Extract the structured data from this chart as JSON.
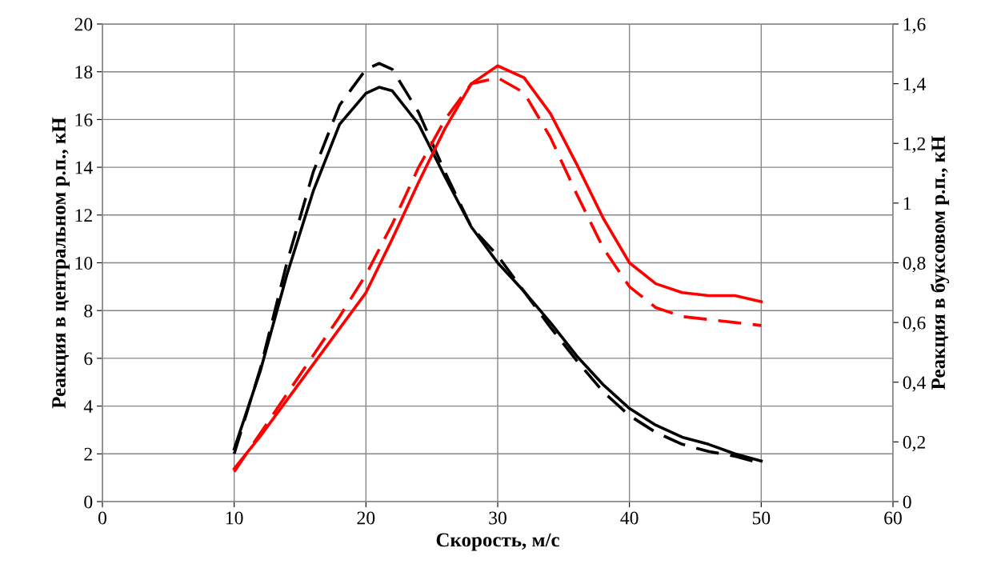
{
  "chart_data": {
    "type": "line",
    "xlabel": "Скорость, м/с",
    "ylabel": "Реакция в центральном р.п., кН",
    "y2label": "Реакция в буксовом р.п., кН",
    "x": [
      10,
      12,
      14,
      16,
      18,
      20,
      21,
      22,
      24,
      26,
      28,
      30,
      32,
      34,
      36,
      38,
      40,
      42,
      44,
      46,
      48,
      50
    ],
    "series": [
      {
        "color": "#000000",
        "line_style": "solid",
        "axis": "y",
        "values": [
          2.2,
          5.5,
          9.5,
          13,
          15.8,
          17.1,
          17.35,
          17.2,
          15.8,
          13.6,
          11.5,
          10.0,
          8.8,
          7.5,
          6.1,
          4.9,
          3.9,
          3.2,
          2.7,
          2.4,
          2.0,
          1.7
        ]
      },
      {
        "color": "#000000",
        "line_style": "dashed",
        "axis": "y",
        "values": [
          2.0,
          5.6,
          10,
          13.8,
          16.6,
          18.1,
          18.35,
          18.1,
          16.3,
          13.8,
          11.5,
          10.3,
          8.8,
          7.3,
          5.9,
          4.6,
          3.6,
          2.9,
          2.4,
          2.1,
          1.9,
          1.6
        ]
      },
      {
        "color": "#ff0000",
        "line_style": "solid",
        "axis": "y2",
        "x": [
          10,
          12,
          14,
          16,
          18,
          20,
          22,
          24,
          26,
          28,
          30,
          32,
          34,
          36,
          38,
          40,
          42,
          44,
          46,
          48,
          50
        ],
        "values": [
          0.11,
          0.22,
          0.34,
          0.46,
          0.58,
          0.7,
          0.88,
          1.07,
          1.25,
          1.4,
          1.46,
          1.42,
          1.3,
          1.13,
          0.95,
          0.8,
          0.73,
          0.7,
          0.69,
          0.69,
          0.67
        ]
      },
      {
        "color": "#ff0000",
        "line_style": "dashed",
        "axis": "y2",
        "x": [
          10,
          12,
          14,
          16,
          18,
          20,
          22,
          24,
          26,
          28,
          30,
          32,
          34,
          36,
          38,
          40,
          42,
          44,
          46,
          48,
          50
        ],
        "values": [
          0.1,
          0.23,
          0.36,
          0.49,
          0.62,
          0.76,
          0.93,
          1.12,
          1.28,
          1.4,
          1.42,
          1.37,
          1.22,
          1.03,
          0.85,
          0.72,
          0.65,
          0.62,
          0.61,
          0.6,
          0.59
        ]
      }
    ],
    "xlim": [
      0,
      60
    ],
    "xticks": [
      0,
      10,
      20,
      30,
      40,
      50,
      60
    ],
    "ylim": [
      0,
      20
    ],
    "yticks": [
      0,
      2,
      4,
      6,
      8,
      10,
      12,
      14,
      16,
      18,
      20
    ],
    "y2lim": [
      0,
      1.6
    ],
    "y2ticks": [
      0,
      {
        "value": 0.2,
        "label": "0,2"
      },
      {
        "value": 0.4,
        "label": "0,4"
      },
      {
        "value": 0.6,
        "label": "0,6"
      },
      {
        "value": 0.8,
        "label": "0,8"
      },
      1,
      {
        "value": 1.2,
        "label": "1,2"
      },
      {
        "value": 1.4,
        "label": "1,4"
      },
      {
        "value": 1.6,
        "label": "1,6"
      }
    ],
    "grid": true,
    "marker": "none"
  }
}
